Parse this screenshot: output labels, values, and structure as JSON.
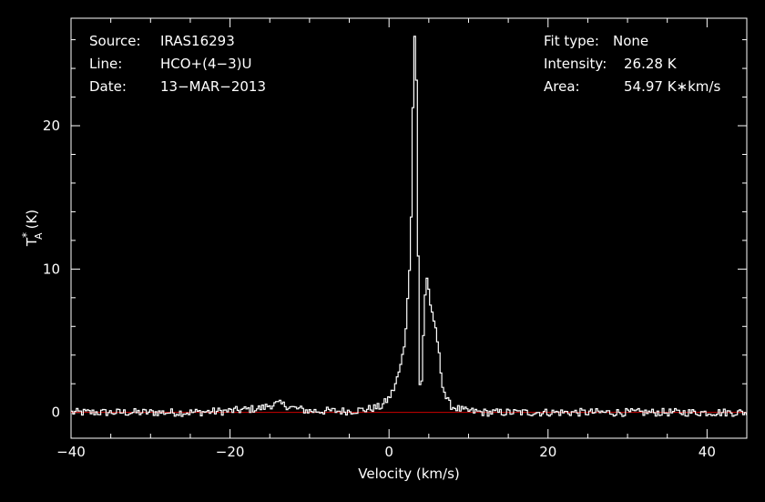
{
  "colors": {
    "background": "#000000",
    "foreground": "#ffffff",
    "baseline": "#cc0000"
  },
  "header": {
    "source_label": "Source:",
    "source_value": "IRAS16293",
    "line_label": "Line:",
    "line_value": "HCO+(4−3)U",
    "date_label": "Date:",
    "date_value": "13−MAR−2013",
    "fit_label": "Fit type:",
    "fit_value": "None",
    "intensity_label": "Intensity:",
    "intensity_value": "26.28 K",
    "area_label": "Area:",
    "area_value": "54.97 K∗km/s"
  },
  "chart_data": {
    "type": "line",
    "xlabel": "Velocity (km/s)",
    "ylabel": "T*A (K)",
    "ylabel_main": "T",
    "ylabel_sup": "*",
    "ylabel_sub": "A",
    "ylabel_unit": "(K)",
    "xlim": [
      -40,
      45
    ],
    "ylim": [
      -1.8,
      27.5
    ],
    "x_ticks": [
      -40,
      -20,
      0,
      20,
      40
    ],
    "x_tick_labels": [
      "−40",
      "−20",
      "0",
      "20",
      "40"
    ],
    "y_ticks": [
      0,
      10,
      20
    ],
    "y_tick_labels": [
      "0",
      "10",
      "20"
    ],
    "x_minor_step": 5,
    "y_minor_step": 2,
    "grid": false,
    "legend": "none",
    "baseline_y": 0,
    "series": [
      {
        "type": "step",
        "x": [
          -40,
          -25,
          -20,
          -16,
          -15,
          -14,
          -13,
          -12,
          -10,
          -5,
          -3,
          -2,
          -1,
          0,
          0.5,
          1,
          1.5,
          2,
          2.5,
          2.8,
          3.0,
          3.2,
          3.4,
          3.6,
          3.8,
          4.0,
          4.2,
          4.4,
          4.6,
          4.8,
          5.0,
          5.3,
          5.6,
          5.9,
          6.2,
          6.5,
          6.8,
          7.2,
          7.6,
          8.0,
          8.5,
          9.0,
          9.5,
          10,
          11,
          12,
          15,
          20,
          30,
          40,
          45
        ],
        "y": [
          0,
          0,
          0.1,
          0.3,
          0.5,
          0.6,
          0.5,
          0.3,
          0.1,
          0.1,
          0.2,
          0.3,
          0.4,
          1.0,
          1.5,
          2.3,
          3.3,
          5.0,
          9.0,
          14.0,
          21.0,
          26.3,
          26.0,
          15.0,
          3.0,
          0.5,
          3.5,
          6.5,
          8.8,
          9.5,
          8.5,
          7.2,
          6.2,
          5.8,
          4.5,
          3.0,
          1.8,
          1.0,
          0.6,
          0.4,
          0.3,
          0.2,
          0.1,
          0.1,
          0.05,
          0,
          0,
          0,
          0,
          0,
          0
        ]
      }
    ]
  }
}
